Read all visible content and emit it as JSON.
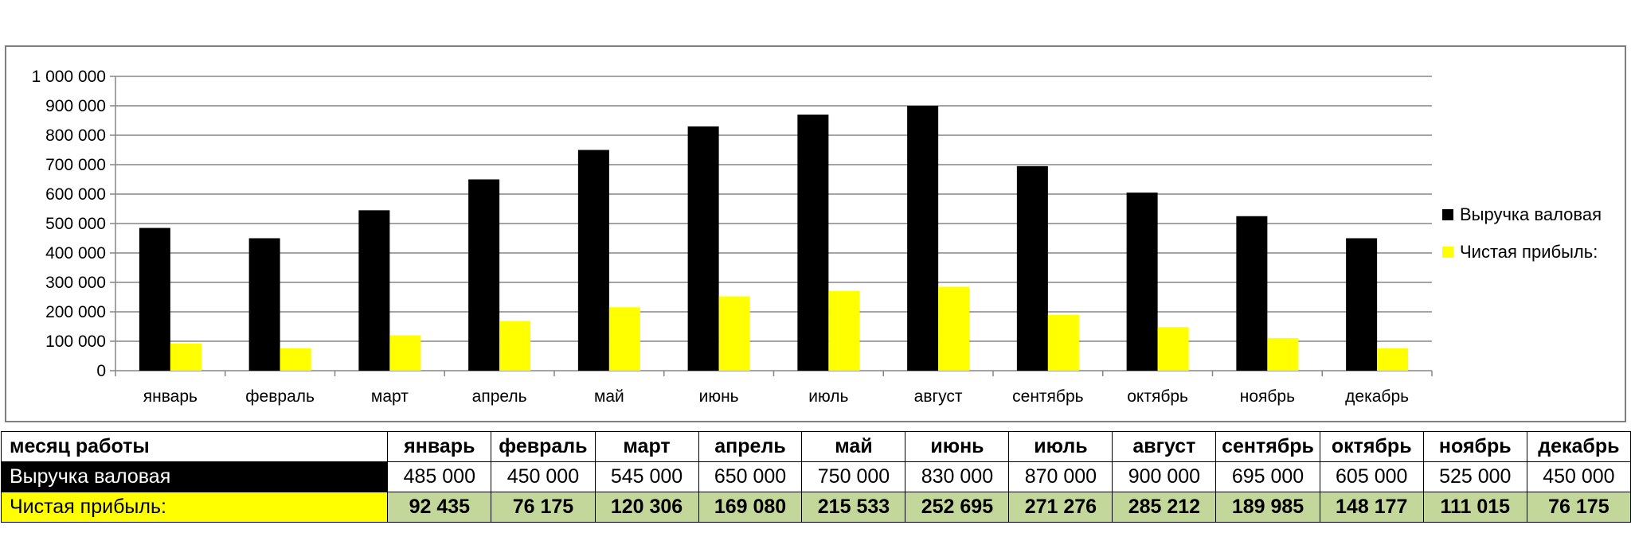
{
  "chart_data": {
    "type": "bar",
    "categories": [
      "январь",
      "февраль",
      "март",
      "апрель",
      "май",
      "июнь",
      "июль",
      "август",
      "сентябрь",
      "октябрь",
      "ноябрь",
      "декабрь"
    ],
    "series": [
      {
        "name": "Выручка валовая",
        "color": "#000000",
        "values": [
          485000,
          450000,
          545000,
          650000,
          750000,
          830000,
          870000,
          900000,
          695000,
          605000,
          525000,
          450000
        ]
      },
      {
        "name": "Чистая прибыль:",
        "color": "#ffff00",
        "values": [
          92435,
          76175,
          120306,
          169080,
          215533,
          252695,
          271276,
          285212,
          189985,
          148177,
          111015,
          76175
        ]
      }
    ],
    "ylim": [
      0,
      1000000
    ],
    "yticks": [
      "0",
      "100 000",
      "200 000",
      "300 000",
      "400 000",
      "500 000",
      "600 000",
      "700 000",
      "800 000",
      "900 000",
      "1 000 000"
    ],
    "grid": true,
    "legend": "right"
  },
  "table": {
    "header_label": "месяц работы",
    "months": [
      "январь",
      "февраль",
      "март",
      "апрель",
      "май",
      "июнь",
      "июль",
      "август",
      "сентябрь",
      "октябрь",
      "ноябрь",
      "декабрь"
    ],
    "rows": [
      {
        "label": "Выручка валовая",
        "values": [
          "485 000",
          "450 000",
          "545 000",
          "650 000",
          "750 000",
          "830 000",
          "870 000",
          "900 000",
          "695 000",
          "605 000",
          "525 000",
          "450 000"
        ]
      },
      {
        "label": "Чистая прибыль:",
        "values": [
          "92 435",
          "76 175",
          "120 306",
          "169 080",
          "215 533",
          "252 695",
          "271 276",
          "285 212",
          "189 985",
          "148 177",
          "111 015",
          "76 175"
        ]
      }
    ]
  }
}
